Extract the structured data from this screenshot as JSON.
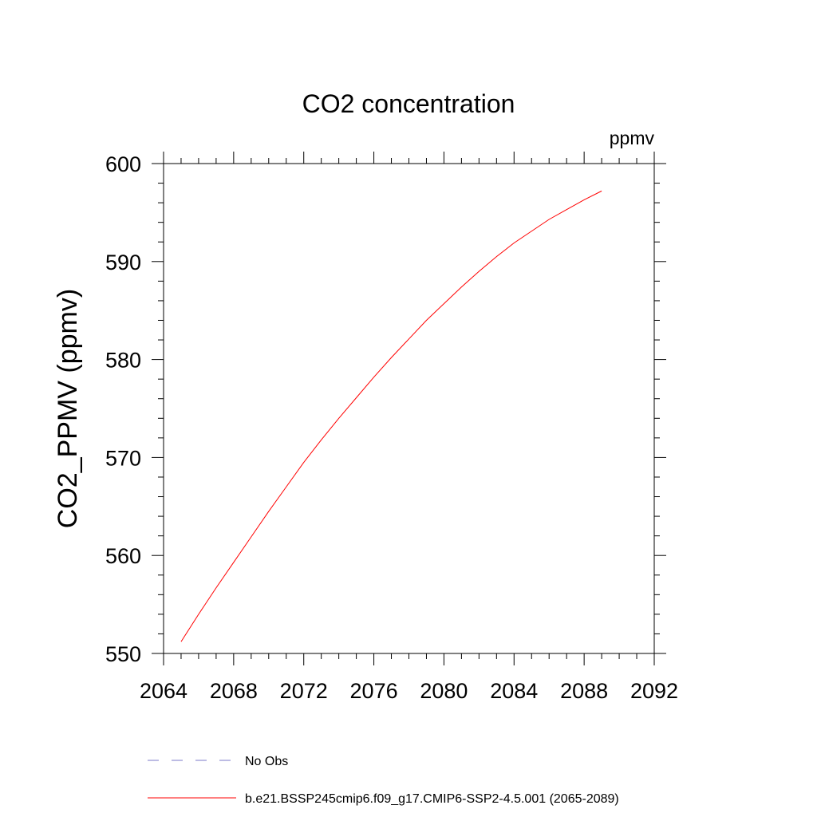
{
  "chart_data": {
    "type": "line",
    "title": "CO2 concentration",
    "units_label": "ppmv",
    "ylabel": "CO2_PPMV  (ppmv)",
    "xlabel": "",
    "xlim": [
      2064,
      2092
    ],
    "ylim": [
      550,
      600
    ],
    "x_ticks": [
      "2064",
      "2068",
      "2072",
      "2076",
      "2080",
      "2084",
      "2088",
      "2092"
    ],
    "y_ticks": [
      "550",
      "560",
      "570",
      "580",
      "590",
      "600"
    ],
    "grid": false,
    "legend_position": "bottom",
    "series": [
      {
        "name": "b.e21.BSSP245cmip6.f09_g17.CMIP6-SSP2-4.5.001 (2065-2089)",
        "color": "#ff0000",
        "style": "solid",
        "x": [
          2065,
          2066,
          2067,
          2068,
          2069,
          2070,
          2071,
          2072,
          2073,
          2074,
          2075,
          2076,
          2077,
          2078,
          2079,
          2080,
          2081,
          2082,
          2083,
          2084,
          2085,
          2086,
          2087,
          2088,
          2089
        ],
        "y": [
          551.2,
          554.0,
          556.7,
          559.3,
          561.9,
          564.5,
          567.0,
          569.5,
          571.8,
          574.0,
          576.1,
          578.2,
          580.2,
          582.1,
          584.0,
          585.7,
          587.4,
          589.0,
          590.5,
          591.9,
          593.1,
          594.3,
          595.3,
          596.3,
          597.2
        ]
      },
      {
        "name": "No Obs",
        "color": "#7b78c9",
        "style": "dashed",
        "x": [],
        "y": []
      }
    ]
  }
}
